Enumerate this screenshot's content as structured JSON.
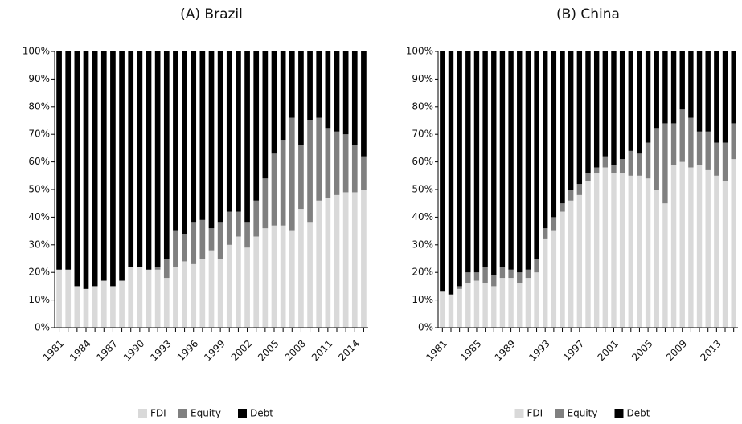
{
  "chart_data": [
    {
      "type": "bar",
      "stacked": true,
      "title": "(A) Brazil",
      "categories": [
        "1981",
        null,
        null,
        "1984",
        null,
        null,
        "1987",
        null,
        null,
        "1990",
        null,
        null,
        "1993",
        null,
        null,
        "1996",
        null,
        null,
        "1999",
        null,
        null,
        "2002",
        null,
        null,
        "2005",
        null,
        null,
        "2008",
        null,
        null,
        "2011",
        null,
        null,
        "2014",
        null
      ],
      "series": [
        {
          "name": "FDI",
          "color": "#d9d9d9",
          "values": [
            21,
            21,
            15,
            14,
            15,
            17,
            15,
            17,
            22,
            22,
            21,
            21,
            18,
            22,
            24,
            23,
            25,
            28,
            25,
            30,
            33,
            29,
            33,
            36,
            37,
            37,
            35,
            43,
            38,
            46,
            47,
            48,
            49,
            49,
            50
          ]
        },
        {
          "name": "Equity",
          "color": "#808080",
          "values": [
            0,
            0,
            0,
            0,
            0,
            0,
            0,
            0,
            0,
            0,
            0,
            1,
            7,
            13,
            10,
            15,
            14,
            8,
            13,
            12,
            9,
            9,
            13,
            18,
            26,
            31,
            41,
            23,
            37,
            30,
            25,
            23,
            21,
            17,
            12
          ]
        },
        {
          "name": "Debt",
          "color": "#000000",
          "values": [
            79,
            79,
            85,
            86,
            85,
            83,
            85,
            83,
            78,
            78,
            79,
            78,
            75,
            65,
            66,
            62,
            61,
            64,
            62,
            58,
            58,
            62,
            54,
            46,
            37,
            32,
            24,
            34,
            25,
            24,
            28,
            29,
            30,
            34,
            38
          ]
        }
      ],
      "ylim": [
        0,
        100
      ],
      "yticks": [
        {
          "value": 0,
          "label": "0%"
        },
        {
          "value": 10,
          "label": "10%"
        },
        {
          "value": 20,
          "label": "20%"
        },
        {
          "value": 30,
          "label": "30%"
        },
        {
          "value": 40,
          "label": "40%"
        },
        {
          "value": 50,
          "label": "50%"
        },
        {
          "value": 60,
          "label": "60%"
        },
        {
          "value": 70,
          "label": "70%"
        },
        {
          "value": 80,
          "label": "80%"
        },
        {
          "value": 90,
          "label": "90%"
        },
        {
          "value": 100,
          "label": "100%"
        }
      ],
      "legend": "bottom"
    },
    {
      "type": "bar",
      "stacked": true,
      "title": "(B) China",
      "categories": [
        "1981",
        null,
        null,
        null,
        "1985",
        null,
        null,
        null,
        "1989",
        null,
        null,
        null,
        "1993",
        null,
        null,
        null,
        "1997",
        null,
        null,
        null,
        "2001",
        null,
        null,
        null,
        "2005",
        null,
        null,
        null,
        "2009",
        null,
        null,
        null,
        "2013",
        null,
        null
      ],
      "series": [
        {
          "name": "FDI",
          "color": "#d9d9d9",
          "values": [
            13,
            12,
            14,
            16,
            17,
            16,
            15,
            18,
            18,
            16,
            18,
            20,
            32,
            35,
            42,
            46,
            48,
            53,
            56,
            58,
            56,
            56,
            55,
            55,
            54,
            50,
            45,
            59,
            60,
            58,
            59,
            57,
            55,
            53,
            61
          ]
        },
        {
          "name": "Equity",
          "color": "#808080",
          "values": [
            0,
            0,
            1,
            4,
            3,
            6,
            4,
            4,
            3,
            4,
            3,
            5,
            4,
            5,
            3,
            4,
            4,
            3,
            2,
            4,
            3,
            5,
            9,
            8,
            13,
            22,
            29,
            15,
            19,
            18,
            12,
            14,
            12,
            14,
            13
          ]
        },
        {
          "name": "Debt",
          "color": "#000000",
          "values": [
            87,
            88,
            85,
            80,
            80,
            78,
            81,
            78,
            79,
            80,
            79,
            75,
            64,
            60,
            55,
            50,
            48,
            44,
            42,
            38,
            41,
            39,
            36,
            37,
            33,
            28,
            26,
            26,
            21,
            24,
            29,
            29,
            33,
            33,
            26
          ]
        }
      ],
      "ylim": [
        0,
        100
      ],
      "yticks": [
        {
          "value": 0,
          "label": "0%"
        },
        {
          "value": 10,
          "label": "10%"
        },
        {
          "value": 20,
          "label": "20%"
        },
        {
          "value": 30,
          "label": "30%"
        },
        {
          "value": 40,
          "label": "40%"
        },
        {
          "value": 50,
          "label": "50%"
        },
        {
          "value": 60,
          "label": "60%"
        },
        {
          "value": 70,
          "label": "70%"
        },
        {
          "value": 80,
          "label": "80%"
        },
        {
          "value": 90,
          "label": "90%"
        },
        {
          "value": 100,
          "label": "100%"
        }
      ],
      "legend": "bottom"
    }
  ]
}
